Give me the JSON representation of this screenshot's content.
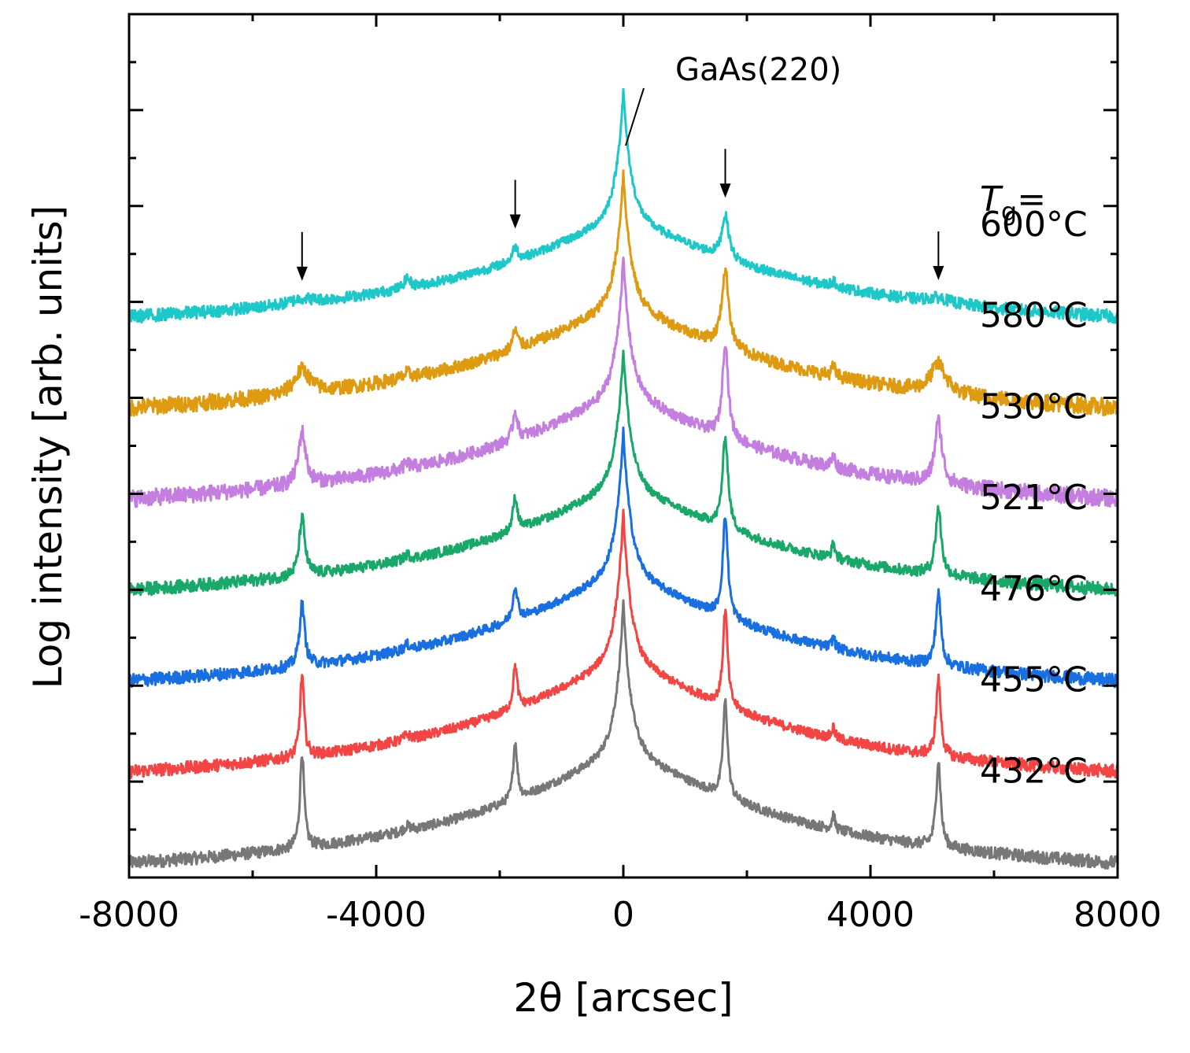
{
  "chart_data": {
    "type": "line",
    "title": "",
    "xlabel": "2θ [arcsec]",
    "ylabel": "Log intensity [arb. units]",
    "xlim": [
      -8000,
      8000
    ],
    "ylim": [
      0,
      9
    ],
    "x_ticks": [
      -8000,
      -4000,
      0,
      4000,
      8000
    ],
    "x_tick_labels": [
      "-8000",
      "-4000",
      "0",
      "4000",
      "8000"
    ],
    "y_tick_labels_shown": false,
    "grid": false,
    "legend_header": {
      "italic": "T",
      "sub": "g",
      "suffix": "="
    },
    "annotation": "GaAs(220)",
    "arrow_positions": [
      -5200,
      -1750,
      1650,
      5100
    ],
    "curve_model": {
      "baseline_at_edges": 0,
      "substrate_peak_x": 0,
      "satellite_peaks_x": [
        -5200,
        -1750,
        1650,
        5100,
        3400,
        -3500
      ]
    },
    "series": [
      {
        "name": "432°C",
        "label": "432°C",
        "color": "#777777",
        "offset": 0.25,
        "main_peak": 2.6,
        "sat": [
          1.0,
          0.6,
          1.0,
          0.9,
          0.15,
          0.05
        ],
        "sat_w": [
          40,
          40,
          45,
          45,
          30,
          60
        ]
      },
      {
        "name": "455°C",
        "label": "455°C",
        "color": "#f44545",
        "offset": 1.2,
        "main_peak": 2.6,
        "sat": [
          0.85,
          0.45,
          1.0,
          0.8,
          0.12,
          0.05
        ],
        "sat_w": [
          40,
          40,
          45,
          45,
          30,
          60
        ]
      },
      {
        "name": "476°C",
        "label": "476°C",
        "color": "#1a6fe0",
        "offset": 2.15,
        "main_peak": 2.5,
        "sat": [
          0.65,
          0.35,
          1.05,
          0.75,
          0.12,
          0.05
        ],
        "sat_w": [
          50,
          45,
          50,
          50,
          30,
          60
        ]
      },
      {
        "name": "521°C",
        "label": "521°C",
        "color": "#1aa86a",
        "offset": 3.1,
        "main_peak": 2.4,
        "sat": [
          0.6,
          0.35,
          0.95,
          0.7,
          0.15,
          0.05
        ],
        "sat_w": [
          55,
          45,
          55,
          55,
          35,
          60
        ]
      },
      {
        "name": "530°C",
        "label": "530°C",
        "color": "#c47ee0",
        "offset": 4.05,
        "main_peak": 2.4,
        "sat": [
          0.55,
          0.3,
          1.0,
          0.65,
          0.12,
          0.05
        ],
        "sat_w": [
          70,
          45,
          55,
          70,
          35,
          60
        ]
      },
      {
        "name": "580°C",
        "label": "580°C",
        "color": "#de9a10",
        "offset": 5.0,
        "main_peak": 2.35,
        "sat": [
          0.25,
          0.2,
          0.8,
          0.3,
          0.1,
          0.05
        ],
        "sat_w": [
          150,
          50,
          70,
          150,
          40,
          60
        ]
      },
      {
        "name": "600°C",
        "label": "600°C",
        "color": "#1ec8c8",
        "offset": 5.95,
        "main_peak": 2.25,
        "sat": [
          0.05,
          0.15,
          0.45,
          0.05,
          0.05,
          0.1
        ],
        "sat_w": [
          200,
          50,
          70,
          200,
          60,
          60
        ]
      }
    ]
  }
}
